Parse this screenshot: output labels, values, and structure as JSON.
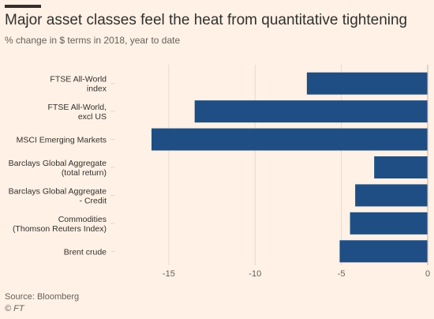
{
  "title": "Major asset classes feel the heat from quantitative tightening",
  "subtitle": "% change in $ terms in 2018, year to date",
  "source": "Source: Bloomberg",
  "credit": "© FT",
  "colors": {
    "background": "#fff1e5",
    "bar": "#1f4e84",
    "grid": "#e6d9ce",
    "text": "#33302e",
    "muted": "#66605c"
  },
  "chart_data": {
    "type": "bar",
    "orientation": "horizontal",
    "categories": [
      [
        "FTSE All-World",
        "index"
      ],
      [
        "FTSE All-World,",
        "excl US"
      ],
      [
        "MSCI Emerging Markets"
      ],
      [
        "Barclays Global Aggregate",
        "(total return)"
      ],
      [
        "Barclays Global Aggregate",
        "- Credit"
      ],
      [
        "Commodities",
        "(Thomson Reuters Index)"
      ],
      [
        "Brent crude"
      ]
    ],
    "values": [
      -7.0,
      -13.5,
      -16.0,
      -3.1,
      -4.2,
      -4.5,
      -5.1
    ],
    "xlim": [
      -16,
      0
    ],
    "xticks": [
      -15,
      -10,
      -5,
      0
    ],
    "xtick_labels": [
      "-15",
      "-10",
      "-5",
      "0"
    ],
    "grid": true
  }
}
